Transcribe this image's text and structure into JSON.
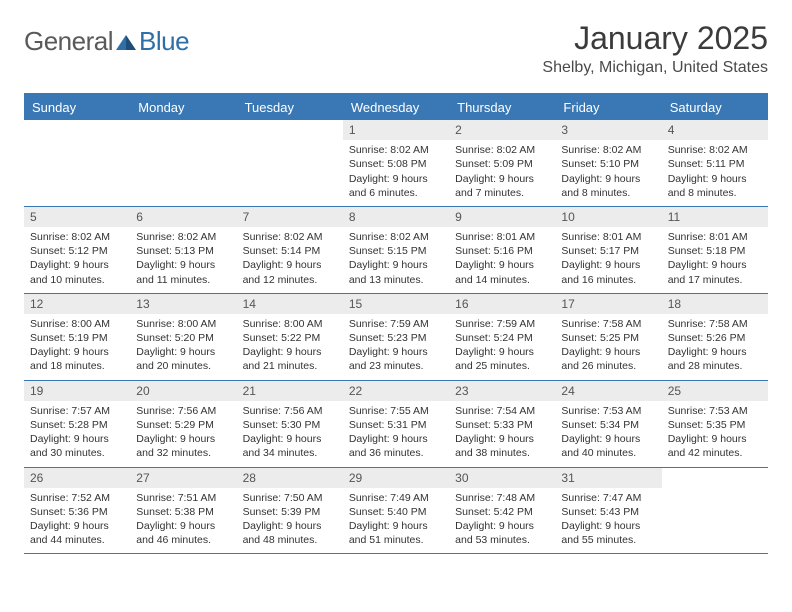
{
  "brand": {
    "text1": "General",
    "text2": "Blue"
  },
  "title": "January 2025",
  "location": "Shelby, Michigan, United States",
  "colors": {
    "header_bg": "#3a78b5",
    "header_text": "#ffffff",
    "border": "#3a78b5",
    "daynum_bg": "#ececec",
    "text": "#333333",
    "brand_gray": "#5a5a5a",
    "brand_blue": "#2f6fa8"
  },
  "weekdays": [
    "Sunday",
    "Monday",
    "Tuesday",
    "Wednesday",
    "Thursday",
    "Friday",
    "Saturday"
  ],
  "weeks": [
    [
      null,
      null,
      null,
      {
        "d": "1",
        "sunrise": "8:02 AM",
        "sunset": "5:08 PM",
        "daylight": "9 hours and 6 minutes."
      },
      {
        "d": "2",
        "sunrise": "8:02 AM",
        "sunset": "5:09 PM",
        "daylight": "9 hours and 7 minutes."
      },
      {
        "d": "3",
        "sunrise": "8:02 AM",
        "sunset": "5:10 PM",
        "daylight": "9 hours and 8 minutes."
      },
      {
        "d": "4",
        "sunrise": "8:02 AM",
        "sunset": "5:11 PM",
        "daylight": "9 hours and 8 minutes."
      }
    ],
    [
      {
        "d": "5",
        "sunrise": "8:02 AM",
        "sunset": "5:12 PM",
        "daylight": "9 hours and 10 minutes."
      },
      {
        "d": "6",
        "sunrise": "8:02 AM",
        "sunset": "5:13 PM",
        "daylight": "9 hours and 11 minutes."
      },
      {
        "d": "7",
        "sunrise": "8:02 AM",
        "sunset": "5:14 PM",
        "daylight": "9 hours and 12 minutes."
      },
      {
        "d": "8",
        "sunrise": "8:02 AM",
        "sunset": "5:15 PM",
        "daylight": "9 hours and 13 minutes."
      },
      {
        "d": "9",
        "sunrise": "8:01 AM",
        "sunset": "5:16 PM",
        "daylight": "9 hours and 14 minutes."
      },
      {
        "d": "10",
        "sunrise": "8:01 AM",
        "sunset": "5:17 PM",
        "daylight": "9 hours and 16 minutes."
      },
      {
        "d": "11",
        "sunrise": "8:01 AM",
        "sunset": "5:18 PM",
        "daylight": "9 hours and 17 minutes."
      }
    ],
    [
      {
        "d": "12",
        "sunrise": "8:00 AM",
        "sunset": "5:19 PM",
        "daylight": "9 hours and 18 minutes."
      },
      {
        "d": "13",
        "sunrise": "8:00 AM",
        "sunset": "5:20 PM",
        "daylight": "9 hours and 20 minutes."
      },
      {
        "d": "14",
        "sunrise": "8:00 AM",
        "sunset": "5:22 PM",
        "daylight": "9 hours and 21 minutes."
      },
      {
        "d": "15",
        "sunrise": "7:59 AM",
        "sunset": "5:23 PM",
        "daylight": "9 hours and 23 minutes."
      },
      {
        "d": "16",
        "sunrise": "7:59 AM",
        "sunset": "5:24 PM",
        "daylight": "9 hours and 25 minutes."
      },
      {
        "d": "17",
        "sunrise": "7:58 AM",
        "sunset": "5:25 PM",
        "daylight": "9 hours and 26 minutes."
      },
      {
        "d": "18",
        "sunrise": "7:58 AM",
        "sunset": "5:26 PM",
        "daylight": "9 hours and 28 minutes."
      }
    ],
    [
      {
        "d": "19",
        "sunrise": "7:57 AM",
        "sunset": "5:28 PM",
        "daylight": "9 hours and 30 minutes."
      },
      {
        "d": "20",
        "sunrise": "7:56 AM",
        "sunset": "5:29 PM",
        "daylight": "9 hours and 32 minutes."
      },
      {
        "d": "21",
        "sunrise": "7:56 AM",
        "sunset": "5:30 PM",
        "daylight": "9 hours and 34 minutes."
      },
      {
        "d": "22",
        "sunrise": "7:55 AM",
        "sunset": "5:31 PM",
        "daylight": "9 hours and 36 minutes."
      },
      {
        "d": "23",
        "sunrise": "7:54 AM",
        "sunset": "5:33 PM",
        "daylight": "9 hours and 38 minutes."
      },
      {
        "d": "24",
        "sunrise": "7:53 AM",
        "sunset": "5:34 PM",
        "daylight": "9 hours and 40 minutes."
      },
      {
        "d": "25",
        "sunrise": "7:53 AM",
        "sunset": "5:35 PM",
        "daylight": "9 hours and 42 minutes."
      }
    ],
    [
      {
        "d": "26",
        "sunrise": "7:52 AM",
        "sunset": "5:36 PM",
        "daylight": "9 hours and 44 minutes."
      },
      {
        "d": "27",
        "sunrise": "7:51 AM",
        "sunset": "5:38 PM",
        "daylight": "9 hours and 46 minutes."
      },
      {
        "d": "28",
        "sunrise": "7:50 AM",
        "sunset": "5:39 PM",
        "daylight": "9 hours and 48 minutes."
      },
      {
        "d": "29",
        "sunrise": "7:49 AM",
        "sunset": "5:40 PM",
        "daylight": "9 hours and 51 minutes."
      },
      {
        "d": "30",
        "sunrise": "7:48 AM",
        "sunset": "5:42 PM",
        "daylight": "9 hours and 53 minutes."
      },
      {
        "d": "31",
        "sunrise": "7:47 AM",
        "sunset": "5:43 PM",
        "daylight": "9 hours and 55 minutes."
      },
      null
    ]
  ],
  "labels": {
    "sunrise": "Sunrise: ",
    "sunset": "Sunset: ",
    "daylight": "Daylight: "
  }
}
